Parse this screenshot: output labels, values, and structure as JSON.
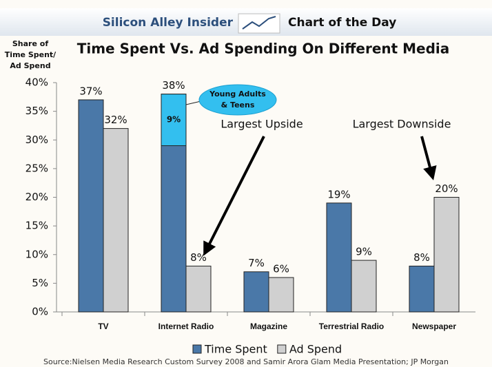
{
  "header": {
    "site": "Silicon Alley Insider",
    "tagline": "Chart of the Day"
  },
  "chart_data": {
    "type": "bar",
    "title": "Time Spent Vs. Ad Spending On Different Media",
    "ylabel": [
      "Share of",
      "Time Spent/",
      "Ad Spend"
    ],
    "categories": [
      "TV",
      "Internet Radio",
      "Magazine",
      "Terrestrial Radio",
      "Newspaper"
    ],
    "series": [
      {
        "name": "Time Spent",
        "color": "#4a78a8",
        "values": [
          37,
          38,
          7,
          19,
          8
        ],
        "value_labels": [
          "37%",
          "38%",
          "7%",
          "19%",
          "8%"
        ]
      },
      {
        "name": "Ad Spend",
        "color": "#d0d0d0",
        "values": [
          32,
          8,
          6,
          9,
          20
        ],
        "value_labels": [
          "32%",
          "8%",
          "6%",
          "9%",
          "20%"
        ]
      }
    ],
    "ylim": [
      0,
      40
    ],
    "yticks": [
      {
        "value": 0,
        "label": "0%"
      },
      {
        "value": 5,
        "label": "5%"
      },
      {
        "value": 10,
        "label": "10%"
      },
      {
        "value": 15,
        "label": "15%"
      },
      {
        "value": 20,
        "label": "20%"
      },
      {
        "value": 25,
        "label": "25%"
      },
      {
        "value": 30,
        "label": "30%"
      },
      {
        "value": 35,
        "label": "35%"
      },
      {
        "value": 40,
        "label": "40%"
      }
    ],
    "highlight": {
      "category": 1,
      "series": 0,
      "value": 9,
      "value_label": "9%",
      "label": [
        "Young Adults",
        "& Teens"
      ],
      "color": "#33bfef"
    },
    "annotations": [
      "Largest Upside",
      "Largest Downside"
    ],
    "source": "Source:Nielsen Media Research Custom Survey 2008 and Samir Arora Glam Media Presentation; JP Morgan"
  }
}
